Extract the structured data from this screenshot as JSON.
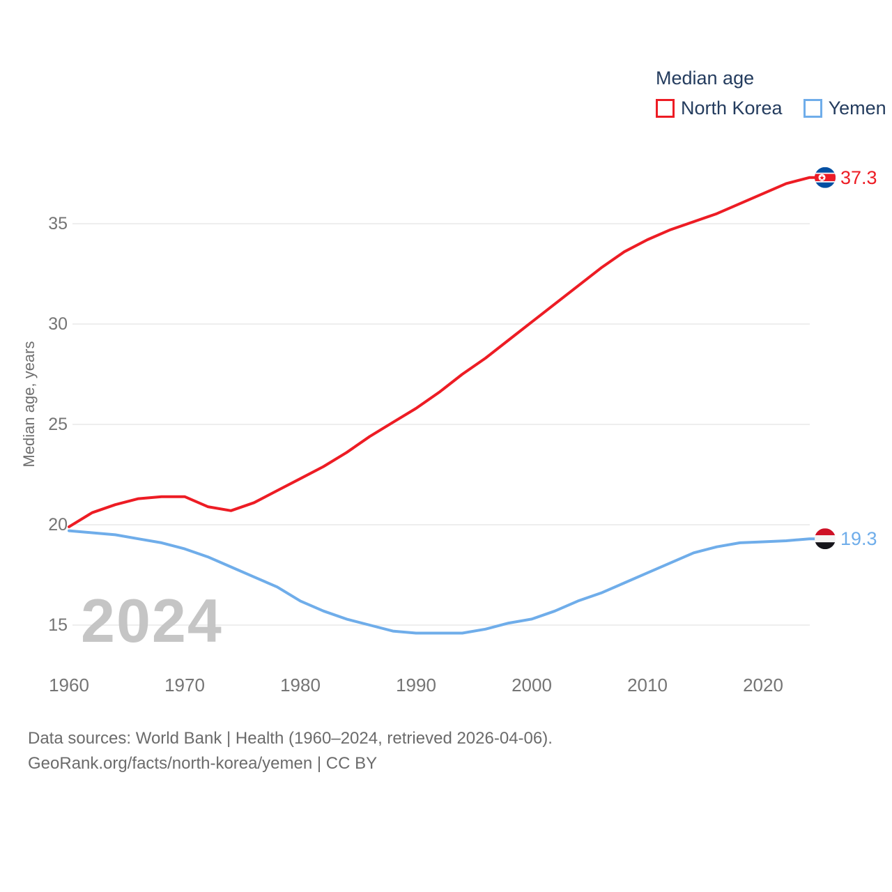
{
  "legend": {
    "title": "Median age",
    "series": [
      {
        "label": "North Korea",
        "color": "#ed1c24"
      },
      {
        "label": "Yemen",
        "color": "#6fadea"
      }
    ]
  },
  "watermark": "2024",
  "y_axis": {
    "title": "Median age, years",
    "ticks": [
      "35",
      "30",
      "25",
      "20",
      "15"
    ]
  },
  "x_axis": {
    "ticks": [
      "1960",
      "1970",
      "1980",
      "1990",
      "2000",
      "2010",
      "2020"
    ]
  },
  "end_labels": {
    "north_korea": "37.3",
    "yemen": "19.3"
  },
  "footer": {
    "line1": "Data sources: World Bank | Health (1960–2024, retrieved 2026-04-06).",
    "line2": "GeoRank.org/facts/north-korea/yemen | CC BY"
  },
  "chart_data": {
    "type": "line",
    "title": "Median age",
    "ylabel": "Median age, years",
    "grid": "horizontal-only",
    "legend_position": "top-right",
    "xlim": [
      1960,
      2024
    ],
    "ylim": [
      13,
      38.5
    ],
    "yticks": [
      15,
      20,
      25,
      30,
      35
    ],
    "xticks": [
      1960,
      1970,
      1980,
      1990,
      2000,
      2010,
      2020
    ],
    "x": [
      1960,
      1962,
      1964,
      1966,
      1968,
      1970,
      1972,
      1974,
      1976,
      1978,
      1980,
      1982,
      1984,
      1986,
      1988,
      1990,
      1992,
      1994,
      1996,
      1998,
      2000,
      2002,
      2004,
      2006,
      2008,
      2010,
      2012,
      2014,
      2016,
      2018,
      2020,
      2022,
      2024
    ],
    "series": [
      {
        "name": "North Korea",
        "color": "#ed1c24",
        "end_label": 37.3,
        "values": [
          19.9,
          20.6,
          21.0,
          21.3,
          21.4,
          21.4,
          20.9,
          20.7,
          21.1,
          21.7,
          22.3,
          22.9,
          23.6,
          24.4,
          25.1,
          25.8,
          26.6,
          27.5,
          28.3,
          29.2,
          30.1,
          31.0,
          31.9,
          32.8,
          33.6,
          34.2,
          34.7,
          35.1,
          35.5,
          36.0,
          36.5,
          37.0,
          37.3
        ]
      },
      {
        "name": "Yemen",
        "color": "#6fadea",
        "end_label": 19.3,
        "values": [
          19.7,
          19.6,
          19.5,
          19.3,
          19.1,
          18.8,
          18.4,
          17.9,
          17.4,
          16.9,
          16.2,
          15.7,
          15.3,
          15.0,
          14.7,
          14.6,
          14.6,
          14.6,
          14.8,
          15.1,
          15.3,
          15.7,
          16.2,
          16.6,
          17.1,
          17.6,
          18.1,
          18.6,
          18.9,
          19.1,
          19.15,
          19.2,
          19.3
        ]
      }
    ]
  }
}
